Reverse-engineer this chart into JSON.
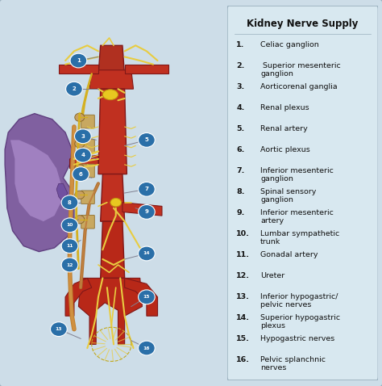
{
  "title": "Kidney Nerve Supply",
  "bg_color": "#cddde8",
  "legend_bg": "#d8e8f0",
  "border_color": "#9ab0be",
  "title_color": "#111111",
  "title_fontsize": 8.5,
  "label_fontsize": 6.8,
  "number_bg_color": "#2a6fa8",
  "items": [
    [
      "1.",
      "Celiac ganglion"
    ],
    [
      "2.",
      " Superior mesenteric\nganglion"
    ],
    [
      "3.",
      "Aorticorenal ganglia"
    ],
    [
      "4.",
      "Renal plexus"
    ],
    [
      "5.",
      "Renal artery"
    ],
    [
      "6.",
      "Aortic plexus"
    ],
    [
      "7.",
      "Inferior mesenteric\nganglion"
    ],
    [
      "8.",
      "Spinal sensory\nganglion"
    ],
    [
      "9.",
      "Inferior mesenteric\nartery"
    ],
    [
      "10.",
      "Lumbar sympathetic\ntrunk"
    ],
    [
      "11.",
      "Gonadal artery"
    ],
    [
      "12.",
      "Ureter"
    ],
    [
      "13.",
      "Inferior hypogastric/\npelvic nerves"
    ],
    [
      "14.",
      "Superior hypogastric\nplexus"
    ],
    [
      "15.",
      "Hypogastric nerves"
    ],
    [
      "16.",
      "Pelvic splanchnic\nnerves"
    ]
  ],
  "figsize": [
    4.74,
    4.78
  ],
  "dpi": 100
}
